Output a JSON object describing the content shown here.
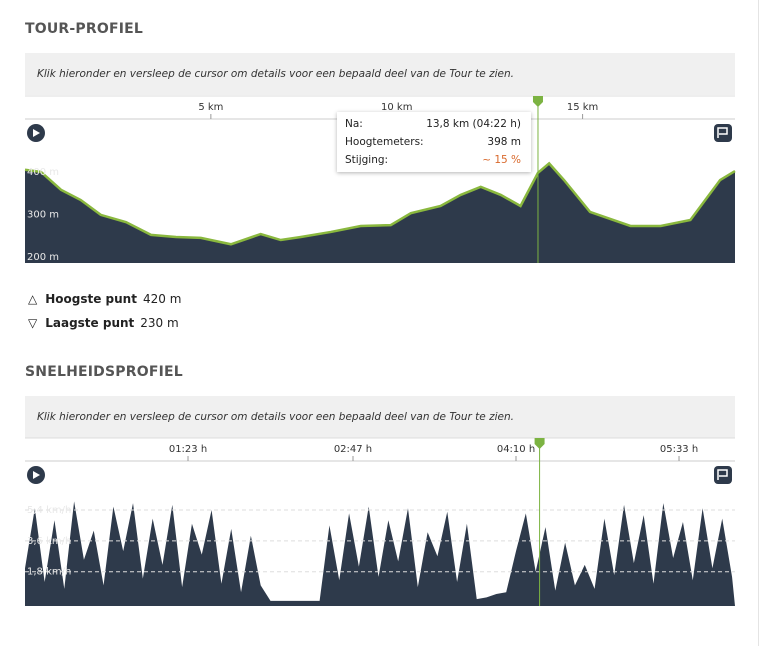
{
  "ui": {
    "tour": {
      "heading": "TOUR-PROFIEL",
      "hint": "Klik hieronder en versleep de cursor om details voor een bepaald deel van de Tour te zien.",
      "tooltip": [
        {
          "label": "Na:",
          "value": "13,8 km (04:22 h)"
        },
        {
          "label": "Hoogtemeters:",
          "value": "398 m"
        },
        {
          "label": "Stijging:",
          "value": "~ 15 %"
        }
      ],
      "stats": [
        {
          "label": "Hoogste punt",
          "value": "420 m"
        },
        {
          "label": "Laagste punt",
          "value": "230 m"
        }
      ]
    },
    "speed": {
      "heading": "SNELHEIDSPROFIEL",
      "hint": "Klik hieronder en versleep de cursor om details voor een bepaald deel van de Tour te zien."
    }
  },
  "chart_data": [
    {
      "type": "area",
      "x": [
        0,
        0.43,
        0.97,
        1.5,
        2.04,
        2.72,
        3.39,
        4.06,
        4.73,
        5.54,
        6.34,
        6.88,
        7.42,
        8.23,
        9.03,
        9.84,
        10.38,
        11.18,
        11.72,
        12.26,
        12.8,
        13.33,
        13.8,
        14.1,
        14.5,
        15.2,
        16.29,
        17.1,
        17.9,
        18.7,
        19.1
      ],
      "values": [
        405,
        400,
        358,
        334,
        299,
        282,
        252,
        247,
        245,
        230,
        254,
        240,
        247,
        259,
        273,
        275,
        303,
        320,
        346,
        365,
        346,
        320,
        398,
        420,
        381,
        306,
        273,
        273,
        287,
        381,
        402
      ],
      "xlim": [
        0,
        19.1
      ],
      "ylim": [
        186,
        522
      ],
      "xticks": [
        {
          "value": 5,
          "label": "5 km"
        },
        {
          "value": 10,
          "label": "10 km"
        },
        {
          "value": 15,
          "label": "15 km"
        }
      ],
      "yticks": [
        {
          "value": 200,
          "label": "200 m"
        },
        {
          "value": 300,
          "label": "300 m"
        },
        {
          "value": 400,
          "label": "400 m"
        }
      ],
      "cursor": 13.8,
      "color": "#2e3a4b",
      "line_color": "#8ab83e",
      "grid": false
    },
    {
      "type": "area",
      "x": [
        0,
        5,
        10,
        15,
        20,
        25,
        30,
        35,
        40,
        45,
        50,
        55,
        60,
        65,
        70,
        75,
        80,
        85,
        90,
        95,
        100,
        105,
        110,
        115,
        120,
        125,
        130,
        135,
        140,
        145,
        150,
        155,
        160,
        165,
        170,
        175,
        180,
        185,
        190,
        195,
        200,
        205,
        210,
        215,
        220,
        225,
        230,
        235,
        240,
        245,
        250,
        255,
        260,
        265,
        270,
        275,
        280,
        285,
        290,
        295,
        300,
        305,
        310,
        315,
        320,
        325,
        330,
        335,
        340,
        345,
        350,
        355,
        360
      ],
      "values": [
        2.0,
        5.5,
        1.2,
        4.8,
        0.8,
        5.9,
        2.5,
        4.2,
        1.0,
        5.6,
        3.0,
        5.8,
        1.4,
        4.9,
        2.2,
        5.7,
        0.9,
        4.6,
        2.8,
        5.4,
        1.1,
        4.3,
        0.6,
        3.9,
        1.0,
        0.1,
        0.1,
        0.1,
        0.1,
        0.1,
        0.1,
        4.5,
        1.3,
        5.2,
        2.1,
        5.6,
        1.5,
        4.8,
        2.4,
        5.5,
        0.9,
        4.1,
        2.7,
        5.3,
        1.2,
        4.6,
        0.2,
        0.3,
        0.5,
        0.6,
        3.0,
        5.2,
        1.8,
        4.4,
        0.7,
        3.5,
        1.0,
        2.2,
        0.8,
        4.9,
        1.6,
        5.7,
        2.3,
        5.1,
        1.1,
        5.8,
        2.6,
        4.7,
        1.3,
        5.5,
        2.0,
        4.9,
        1.5
      ],
      "xlim": [
        0,
        361.5
      ],
      "ylim": [
        -0.2,
        8.2
      ],
      "xticks": [
        {
          "value": 83,
          "label": "01:23 h"
        },
        {
          "value": 167,
          "label": "02:47 h"
        },
        {
          "value": 250,
          "label": "04:10 h"
        },
        {
          "value": 333,
          "label": "05:33 h"
        }
      ],
      "yticks": [
        {
          "value": 1.8,
          "label": "1,8 km/h"
        },
        {
          "value": 3.6,
          "label": "3,6 km/h"
        },
        {
          "value": 5.4,
          "label": "5,4 km/h"
        }
      ],
      "cursor": 262,
      "color": "#2e3a4b",
      "line_color": null,
      "grid": true
    }
  ]
}
